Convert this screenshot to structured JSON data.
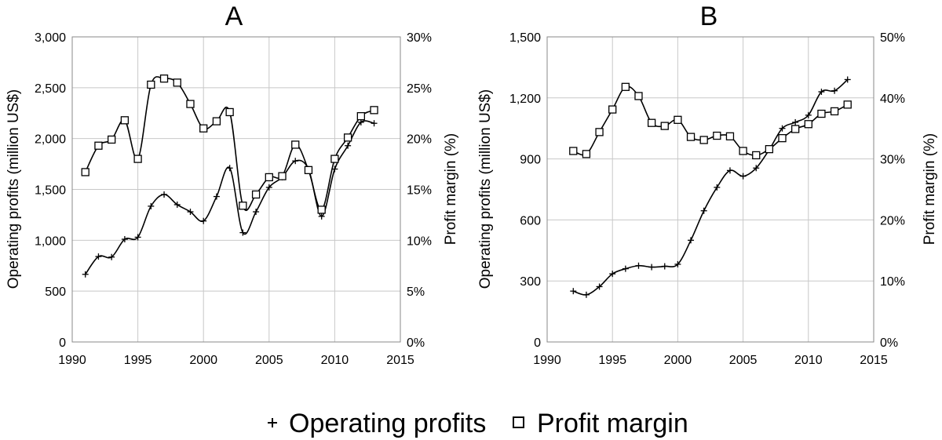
{
  "legend": {
    "operating_label": "Operating profits",
    "margin_label": "Profit margin",
    "operating_symbol": "+",
    "margin_symbol": "square"
  },
  "chart_data": [
    {
      "type": "line",
      "title": "A",
      "xlabel": "",
      "ylabel": "Operating profits (million US$)",
      "y2label": "Profit margin (%)",
      "xlim": [
        1990,
        2015
      ],
      "xticks": [
        1990,
        1995,
        2000,
        2005,
        2010,
        2015
      ],
      "xtick_labels": [
        "1990",
        "1995",
        "2000",
        "2005",
        "2010",
        "2015"
      ],
      "ylim": [
        0,
        3000
      ],
      "yticks": [
        0,
        500,
        1000,
        1500,
        2000,
        2500,
        3000
      ],
      "ytick_labels": [
        "0",
        "500",
        "1,000",
        "1,500",
        "2,000",
        "2,500",
        "3,000"
      ],
      "y2lim": [
        0,
        30
      ],
      "y2ticks": [
        0,
        5,
        10,
        15,
        20,
        25,
        30
      ],
      "y2tick_labels": [
        "0%",
        "5%",
        "10%",
        "15%",
        "20%",
        "25%",
        "30%"
      ],
      "grid": true,
      "series": [
        {
          "name": "Operating profits",
          "axis": "left",
          "marker": "plus",
          "x": [
            1991,
            1992,
            1993,
            1994,
            1995,
            1996,
            1997,
            1998,
            1999,
            2000,
            2001,
            2002,
            2003,
            2004,
            2005,
            2006,
            2007,
            2008,
            2009,
            2010,
            2011,
            2012,
            2013
          ],
          "values": [
            665,
            840,
            835,
            1010,
            1030,
            1335,
            1450,
            1350,
            1280,
            1190,
            1430,
            1710,
            1075,
            1280,
            1520,
            1620,
            1780,
            1700,
            1235,
            1700,
            1930,
            2160,
            2150
          ]
        },
        {
          "name": "Profit margin",
          "axis": "right",
          "marker": "square",
          "x": [
            1991,
            1992,
            1993,
            1994,
            1995,
            1996,
            1997,
            1998,
            1999,
            2000,
            2001,
            2002,
            2003,
            2004,
            2005,
            2006,
            2007,
            2008,
            2009,
            2010,
            2011,
            2012,
            2013
          ],
          "values": [
            16.7,
            19.3,
            19.9,
            21.8,
            18.0,
            25.3,
            25.9,
            25.5,
            23.4,
            21.0,
            21.7,
            22.6,
            13.4,
            14.5,
            16.2,
            16.3,
            19.4,
            16.9,
            13.0,
            18.0,
            20.1,
            22.2,
            22.8
          ]
        }
      ]
    },
    {
      "type": "line",
      "title": "B",
      "xlabel": "",
      "ylabel": "Operating profits (million US$)",
      "y2label": "Profit margin (%)",
      "xlim": [
        1990,
        2015
      ],
      "xticks": [
        1990,
        1995,
        2000,
        2005,
        2010,
        2015
      ],
      "xtick_labels": [
        "1990",
        "1995",
        "2000",
        "2005",
        "2010",
        "2015"
      ],
      "ylim": [
        0,
        1500
      ],
      "yticks": [
        0,
        300,
        600,
        900,
        1200,
        1500
      ],
      "ytick_labels": [
        "0",
        "300",
        "600",
        "900",
        "1,200",
        "1,500"
      ],
      "y2lim": [
        0,
        50
      ],
      "y2ticks": [
        0,
        10,
        20,
        30,
        40,
        50
      ],
      "y2tick_labels": [
        "0%",
        "10%",
        "20%",
        "30%",
        "40%",
        "50%"
      ],
      "grid": true,
      "series": [
        {
          "name": "Operating profits",
          "axis": "left",
          "marker": "plus",
          "x": [
            1992,
            1993,
            1994,
            1995,
            1996,
            1997,
            1998,
            1999,
            2000,
            2001,
            2002,
            2003,
            2004,
            2005,
            2006,
            2007,
            2008,
            2009,
            2010,
            2011,
            2012,
            2013
          ],
          "values": [
            250,
            232,
            272,
            335,
            360,
            375,
            368,
            372,
            382,
            500,
            645,
            760,
            843,
            815,
            855,
            945,
            1050,
            1080,
            1115,
            1230,
            1235,
            1290
          ]
        },
        {
          "name": "Profit margin",
          "axis": "right",
          "marker": "square",
          "x": [
            1992,
            1993,
            1994,
            1995,
            1996,
            1997,
            1998,
            1999,
            2000,
            2001,
            2002,
            2003,
            2004,
            2005,
            2006,
            2007,
            2008,
            2009,
            2010,
            2011,
            2012,
            2013
          ],
          "values": [
            31.3,
            30.8,
            34.4,
            38.1,
            41.8,
            40.3,
            35.9,
            35.4,
            36.4,
            33.6,
            33.1,
            33.8,
            33.7,
            31.3,
            30.6,
            31.6,
            33.4,
            34.9,
            35.7,
            37.4,
            37.8,
            38.9
          ]
        }
      ]
    }
  ]
}
